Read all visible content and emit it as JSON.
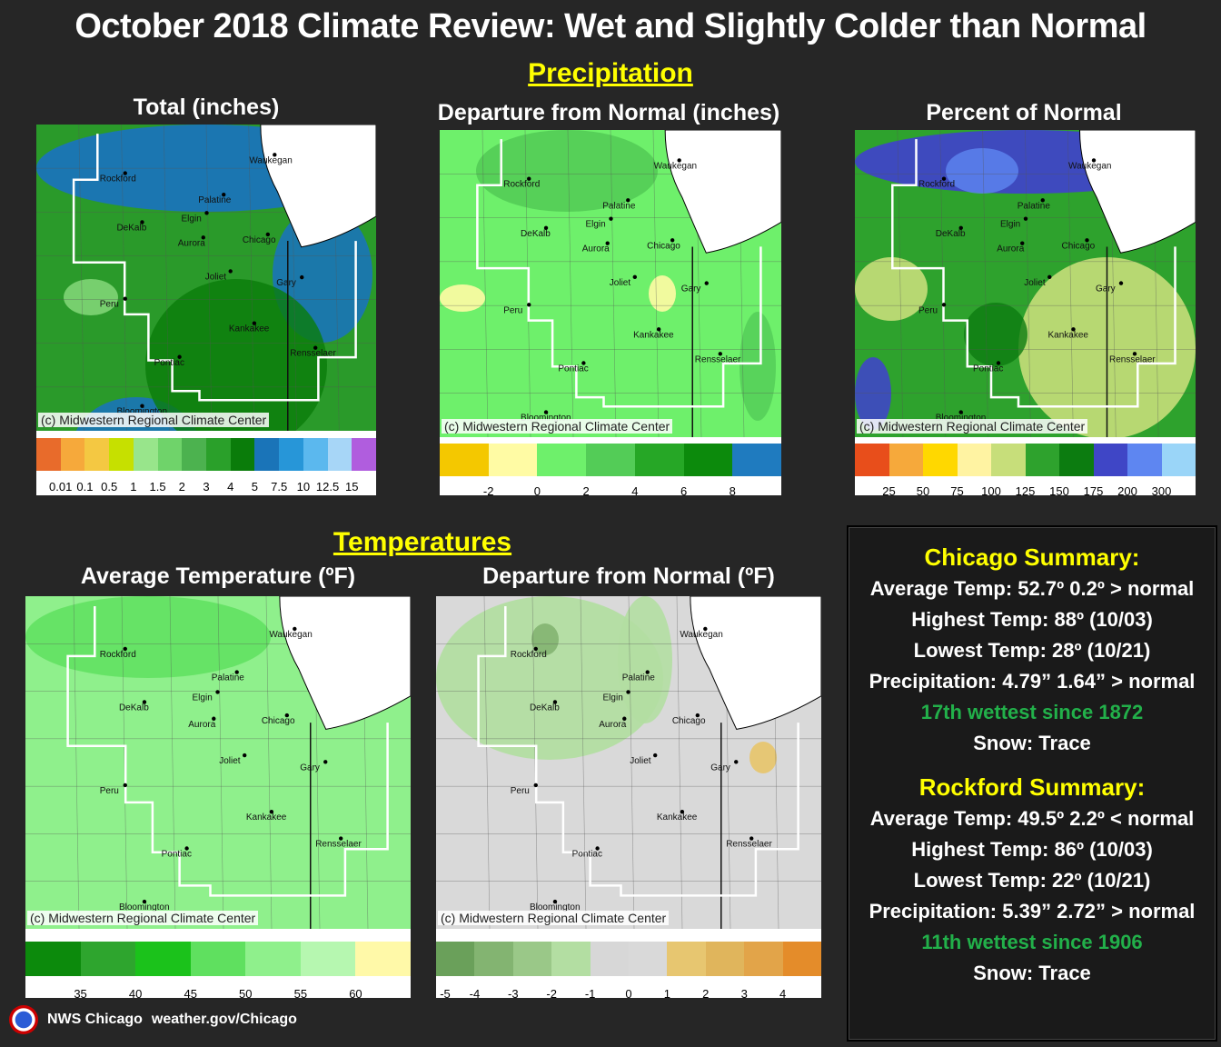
{
  "title": "October 2018 Climate Review: Wet and Slightly Colder than Normal",
  "sections": {
    "precipitation": "Precipitation",
    "temperatures": "Temperatures"
  },
  "credit": "(c) Midwestern Regional Climate Center",
  "cities": [
    "Rockford",
    "Waukegan",
    "Palatine",
    "Elgin",
    "DeKalb",
    "Aurora",
    "Chicago",
    "Joliet",
    "Gary",
    "Peru",
    "Kankakee",
    "Rensselaer",
    "Pontiac",
    "Bloomington"
  ],
  "colors": {
    "accent_yellow": "#ffff00",
    "wettest_green": "#22b04a",
    "background": "#262626"
  },
  "chart_data": [
    {
      "type": "heatmap",
      "title": "Total (inches)",
      "legend_ticks": [
        "0.01",
        "0.1",
        "0.5",
        "1",
        "1.5",
        "2",
        "3",
        "4",
        "5",
        "7.5",
        "10",
        "12.5",
        "15"
      ],
      "legend_colors": [
        "#e86b2b",
        "#f6a93b",
        "#f4c842",
        "#c6e000",
        "#98e58b",
        "#6fd36a",
        "#4cb24f",
        "#2aa02a",
        "#0a7c0a",
        "#1a74b8",
        "#2796d8",
        "#5bb8ee",
        "#a7d6f7",
        "#b05dde"
      ]
    },
    {
      "type": "heatmap",
      "title": "Departure from Normal (inches)",
      "legend_ticks": [
        "-2",
        "0",
        "2",
        "4",
        "6",
        "8"
      ],
      "legend_colors": [
        "#f4c800",
        "#fffba4",
        "#6ef06b",
        "#53cc57",
        "#26a726",
        "#0c8a0c",
        "#1f7bbf"
      ]
    },
    {
      "type": "heatmap",
      "title": "Percent of Normal",
      "legend_ticks": [
        "25",
        "50",
        "75",
        "100",
        "125",
        "150",
        "175",
        "200",
        "300"
      ],
      "legend_colors": [
        "#e84e1b",
        "#f6a93b",
        "#ffd800",
        "#fff3a2",
        "#c7de7a",
        "#2ea22d",
        "#0c7c10",
        "#3f46c6",
        "#5e86f1",
        "#9ad5f8"
      ]
    },
    {
      "type": "heatmap",
      "title": "Average Temperature (ºF)",
      "legend_ticks": [
        "35",
        "40",
        "45",
        "50",
        "55",
        "60"
      ],
      "legend_colors": [
        "#0c8a0c",
        "#2ea52e",
        "#1bc21b",
        "#5fe05f",
        "#8ff08c",
        "#b6f7b0",
        "#fff9a8"
      ]
    },
    {
      "type": "heatmap",
      "title": "Departure from Normal (ºF)",
      "legend_ticks": [
        "-5",
        "-4",
        "-3",
        "-2",
        "-1",
        "0",
        "1",
        "2",
        "3",
        "4"
      ],
      "legend_colors": [
        "#6aa05a",
        "#83b471",
        "#9ac888",
        "#b3dea2",
        "#d7d7d7",
        "#d9d9d9",
        "#e7c670",
        "#e0b55c",
        "#e2a449",
        "#e48c2a"
      ]
    }
  ],
  "summaries": [
    {
      "heading": "Chicago Summary:",
      "avg_temp": "Average Temp: 52.7º     0.2º > normal",
      "highest": "Highest Temp: 88º (10/03)",
      "lowest": "Lowest Temp: 28º (10/21)",
      "precip": "Precipitation: 4.79”   1.64” > normal",
      "rank": "17th wettest since 1872",
      "snow": "Snow: Trace"
    },
    {
      "heading": "Rockford Summary:",
      "avg_temp": "Average Temp: 49.5º     2.2º < normal",
      "highest": "Highest Temp: 86º (10/03)",
      "lowest": "Lowest Temp: 22º (10/21)",
      "precip": "Precipitation: 5.39”   2.72” > normal",
      "rank": "11th wettest since 1906",
      "snow": "Snow: Trace"
    }
  ],
  "footer": {
    "office": "NWS Chicago",
    "url": "weather.gov/Chicago"
  }
}
